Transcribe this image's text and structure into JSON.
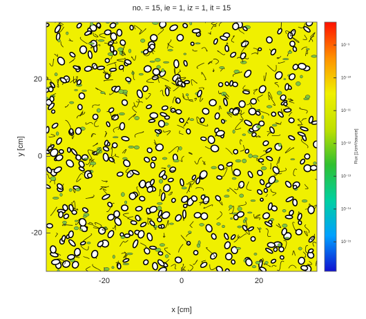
{
  "chart_data": {
    "type": "contour",
    "title": "no. = 15,  ie =  1,  iz =  1,  it = 15",
    "x_label": "x [cm]",
    "y_label": "y [cm]",
    "xlim": [
      -35,
      35
    ],
    "ylim": [
      -30,
      35
    ],
    "xticks": [
      -20,
      0,
      20
    ],
    "yticks": [
      -20,
      0,
      20
    ],
    "field_color": "#f0f000",
    "colorbar": {
      "label": "Flux [1/cm²/source]",
      "log_scale": true,
      "clim": [
        1.26e-16,
        5e-09
      ],
      "colormap": [
        "#1010d0",
        "#00a0ff",
        "#00d0a0",
        "#30c030",
        "#c0e000",
        "#f0f000",
        "#ff9000",
        "#ff1000"
      ],
      "ticks": [
        {
          "value": 1e-09,
          "label": "10⁻⁹"
        },
        {
          "value": 1e-10,
          "label": "10⁻¹⁰"
        },
        {
          "value": 1e-11,
          "label": "10⁻¹¹"
        },
        {
          "value": 1e-12,
          "label": "10⁻¹²"
        },
        {
          "value": 1e-13,
          "label": "10⁻¹³"
        },
        {
          "value": 1e-14,
          "label": "10⁻¹⁴"
        },
        {
          "value": 1e-15,
          "label": "10⁻¹⁵"
        }
      ]
    }
  }
}
